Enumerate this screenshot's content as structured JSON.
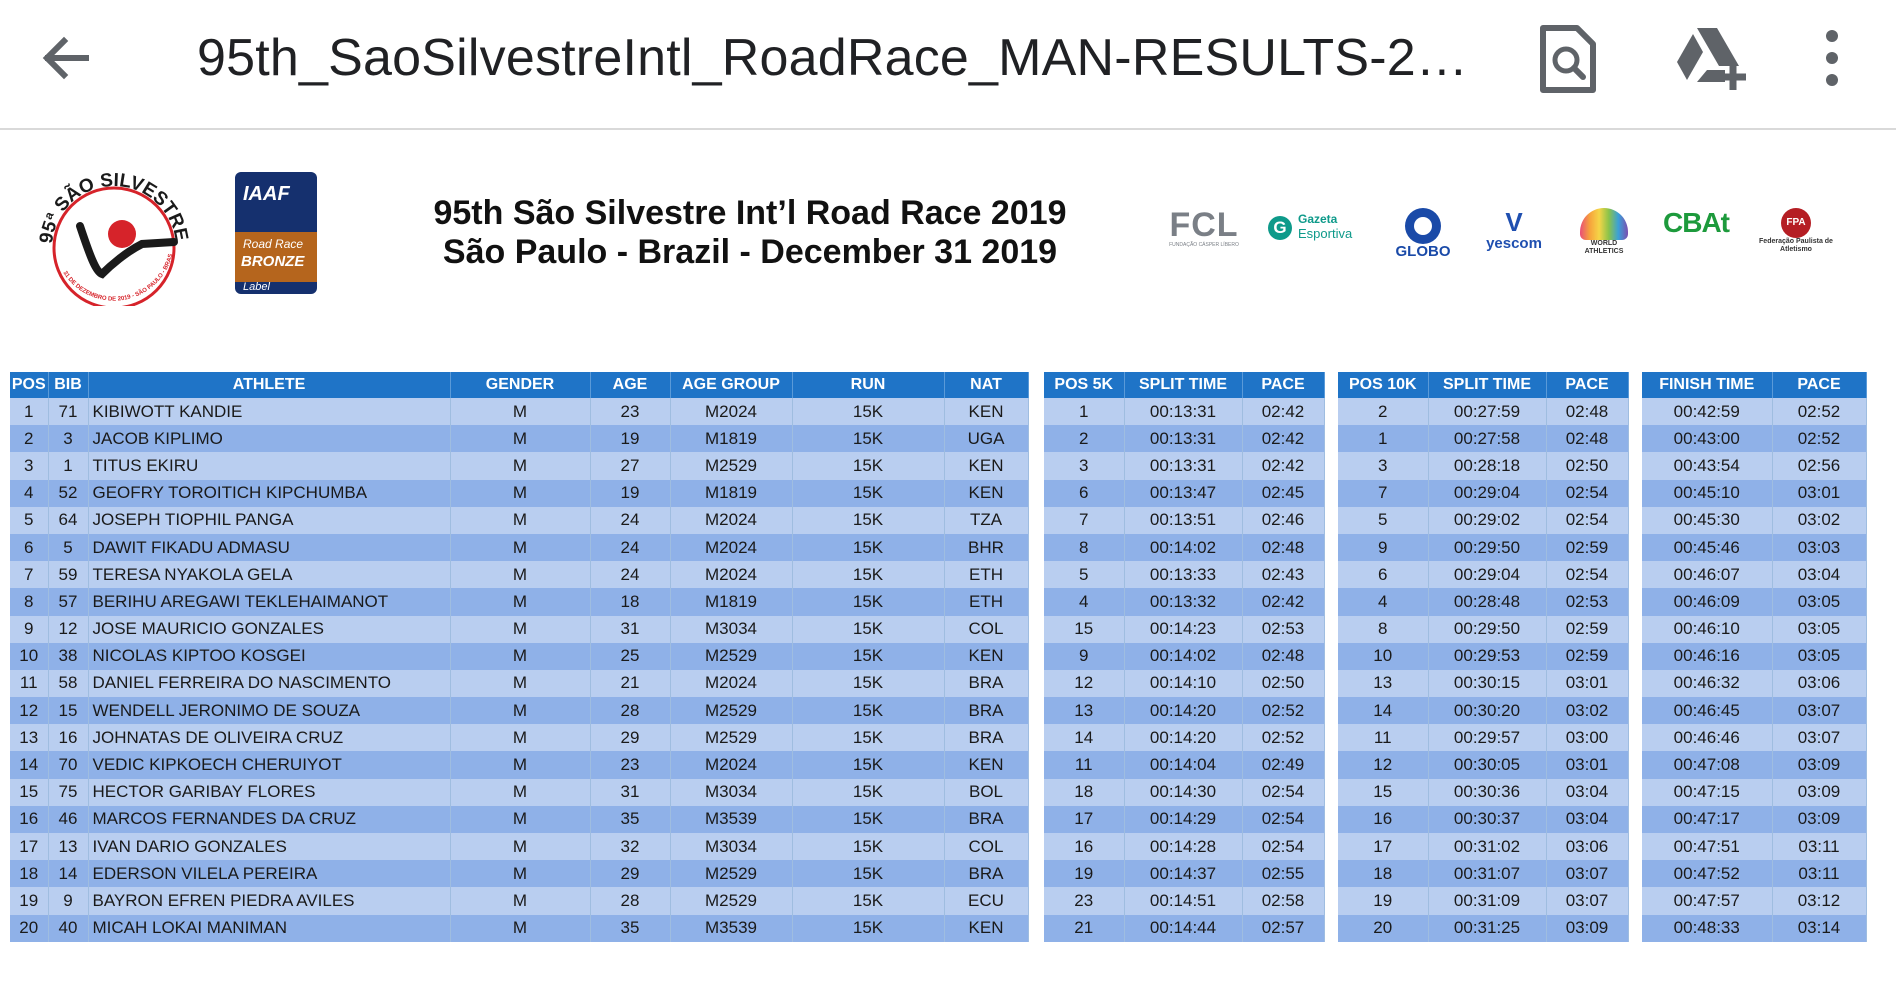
{
  "app_bar": {
    "title": "95th_SaoSilvestreIntl_RoadRace_MAN-RESULTS-20...",
    "back_icon": "arrow-back-icon",
    "search_icon": "find-in-document-icon",
    "drive_icon": "add-to-drive-icon",
    "more_icon": "more-vertical-icon"
  },
  "document": {
    "title_line1": "95th São Silvestre Int’l Road Race 2019",
    "title_line2": "São Paulo - Brazil - December 31 2019",
    "logo_ss": {
      "ring_text": "95ª SÃO SILVESTRE",
      "bottom_text": "31 DE DEZEMBRO DE 2019 - SÃO PAULO - BRASIL"
    },
    "logo_iaaf": {
      "line1": "IAAF",
      "line2": "Road Race",
      "line3": "BRONZE",
      "line4": "Label"
    },
    "sponsors": {
      "fcl": "FCL",
      "fcl_sub": "FUNDAÇÃO CÁSPER LÍBERO",
      "gazeta_line1": "Gazeta",
      "gazeta_line2": "Esportiva",
      "globo": "GLOBO",
      "yescom": "yescom",
      "world_athletics": "WORLD ATHLETICS",
      "cbat": "CBAt",
      "fpa": "Federação Paulista de Atletismo"
    }
  },
  "headers": {
    "main": [
      "POS",
      "BIB",
      "ATHLETE",
      "GENDER",
      "AGE",
      "AGE GROUP",
      "RUN",
      "NAT"
    ],
    "split5k": [
      "POS 5K",
      "SPLIT TIME",
      "PACE"
    ],
    "split10k": [
      "POS 10K",
      "SPLIT TIME",
      "PACE"
    ],
    "finish": [
      "FINISH TIME",
      "PACE"
    ]
  },
  "results": [
    {
      "pos": "1",
      "bib": "71",
      "athlete": "KIBIWOTT KANDIE",
      "gender": "M",
      "age": "23",
      "age_group": "M2024",
      "run": "15K",
      "nat": "KEN",
      "pos5k": "1",
      "split5k": "00:13:31",
      "pace5k": "02:42",
      "pos10k": "2",
      "split10k": "00:27:59",
      "pace10k": "02:48",
      "finish": "00:42:59",
      "pace": "02:52"
    },
    {
      "pos": "2",
      "bib": "3",
      "athlete": "JACOB KIPLIMO",
      "gender": "M",
      "age": "19",
      "age_group": "M1819",
      "run": "15K",
      "nat": "UGA",
      "pos5k": "2",
      "split5k": "00:13:31",
      "pace5k": "02:42",
      "pos10k": "1",
      "split10k": "00:27:58",
      "pace10k": "02:48",
      "finish": "00:43:00",
      "pace": "02:52"
    },
    {
      "pos": "3",
      "bib": "1",
      "athlete": "TITUS EKIRU",
      "gender": "M",
      "age": "27",
      "age_group": "M2529",
      "run": "15K",
      "nat": "KEN",
      "pos5k": "3",
      "split5k": "00:13:31",
      "pace5k": "02:42",
      "pos10k": "3",
      "split10k": "00:28:18",
      "pace10k": "02:50",
      "finish": "00:43:54",
      "pace": "02:56"
    },
    {
      "pos": "4",
      "bib": "52",
      "athlete": "GEOFRY TOROITICH KIPCHUMBA",
      "gender": "M",
      "age": "19",
      "age_group": "M1819",
      "run": "15K",
      "nat": "KEN",
      "pos5k": "6",
      "split5k": "00:13:47",
      "pace5k": "02:45",
      "pos10k": "7",
      "split10k": "00:29:04",
      "pace10k": "02:54",
      "finish": "00:45:10",
      "pace": "03:01"
    },
    {
      "pos": "5",
      "bib": "64",
      "athlete": "JOSEPH TIOPHIL PANGA",
      "gender": "M",
      "age": "24",
      "age_group": "M2024",
      "run": "15K",
      "nat": "TZA",
      "pos5k": "7",
      "split5k": "00:13:51",
      "pace5k": "02:46",
      "pos10k": "5",
      "split10k": "00:29:02",
      "pace10k": "02:54",
      "finish": "00:45:30",
      "pace": "03:02"
    },
    {
      "pos": "6",
      "bib": "5",
      "athlete": "DAWIT FIKADU ADMASU",
      "gender": "M",
      "age": "24",
      "age_group": "M2024",
      "run": "15K",
      "nat": "BHR",
      "pos5k": "8",
      "split5k": "00:14:02",
      "pace5k": "02:48",
      "pos10k": "9",
      "split10k": "00:29:50",
      "pace10k": "02:59",
      "finish": "00:45:46",
      "pace": "03:03"
    },
    {
      "pos": "7",
      "bib": "59",
      "athlete": "TERESA NYAKOLA GELA",
      "gender": "M",
      "age": "24",
      "age_group": "M2024",
      "run": "15K",
      "nat": "ETH",
      "pos5k": "5",
      "split5k": "00:13:33",
      "pace5k": "02:43",
      "pos10k": "6",
      "split10k": "00:29:04",
      "pace10k": "02:54",
      "finish": "00:46:07",
      "pace": "03:04"
    },
    {
      "pos": "8",
      "bib": "57",
      "athlete": "BERIHU AREGAWI TEKLEHAIMANOT",
      "gender": "M",
      "age": "18",
      "age_group": "M1819",
      "run": "15K",
      "nat": "ETH",
      "pos5k": "4",
      "split5k": "00:13:32",
      "pace5k": "02:42",
      "pos10k": "4",
      "split10k": "00:28:48",
      "pace10k": "02:53",
      "finish": "00:46:09",
      "pace": "03:05"
    },
    {
      "pos": "9",
      "bib": "12",
      "athlete": "JOSE MAURICIO GONZALES",
      "gender": "M",
      "age": "31",
      "age_group": "M3034",
      "run": "15K",
      "nat": "COL",
      "pos5k": "15",
      "split5k": "00:14:23",
      "pace5k": "02:53",
      "pos10k": "8",
      "split10k": "00:29:50",
      "pace10k": "02:59",
      "finish": "00:46:10",
      "pace": "03:05"
    },
    {
      "pos": "10",
      "bib": "38",
      "athlete": "NICOLAS KIPTOO KOSGEI",
      "gender": "M",
      "age": "25",
      "age_group": "M2529",
      "run": "15K",
      "nat": "KEN",
      "pos5k": "9",
      "split5k": "00:14:02",
      "pace5k": "02:48",
      "pos10k": "10",
      "split10k": "00:29:53",
      "pace10k": "02:59",
      "finish": "00:46:16",
      "pace": "03:05"
    },
    {
      "pos": "11",
      "bib": "58",
      "athlete": "DANIEL FERREIRA DO NASCIMENTO",
      "gender": "M",
      "age": "21",
      "age_group": "M2024",
      "run": "15K",
      "nat": "BRA",
      "pos5k": "12",
      "split5k": "00:14:10",
      "pace5k": "02:50",
      "pos10k": "13",
      "split10k": "00:30:15",
      "pace10k": "03:01",
      "finish": "00:46:32",
      "pace": "03:06"
    },
    {
      "pos": "12",
      "bib": "15",
      "athlete": "WENDELL JERONIMO DE SOUZA",
      "gender": "M",
      "age": "28",
      "age_group": "M2529",
      "run": "15K",
      "nat": "BRA",
      "pos5k": "13",
      "split5k": "00:14:20",
      "pace5k": "02:52",
      "pos10k": "14",
      "split10k": "00:30:20",
      "pace10k": "03:02",
      "finish": "00:46:45",
      "pace": "03:07"
    },
    {
      "pos": "13",
      "bib": "16",
      "athlete": "JOHNATAS DE OLIVEIRA CRUZ",
      "gender": "M",
      "age": "29",
      "age_group": "M2529",
      "run": "15K",
      "nat": "BRA",
      "pos5k": "14",
      "split5k": "00:14:20",
      "pace5k": "02:52",
      "pos10k": "11",
      "split10k": "00:29:57",
      "pace10k": "03:00",
      "finish": "00:46:46",
      "pace": "03:07"
    },
    {
      "pos": "14",
      "bib": "70",
      "athlete": "VEDIC KIPKOECH CHERUIYOT",
      "gender": "M",
      "age": "23",
      "age_group": "M2024",
      "run": "15K",
      "nat": "KEN",
      "pos5k": "11",
      "split5k": "00:14:04",
      "pace5k": "02:49",
      "pos10k": "12",
      "split10k": "00:30:05",
      "pace10k": "03:01",
      "finish": "00:47:08",
      "pace": "03:09"
    },
    {
      "pos": "15",
      "bib": "75",
      "athlete": "HECTOR GARIBAY FLORES",
      "gender": "M",
      "age": "31",
      "age_group": "M3034",
      "run": "15K",
      "nat": "BOL",
      "pos5k": "18",
      "split5k": "00:14:30",
      "pace5k": "02:54",
      "pos10k": "15",
      "split10k": "00:30:36",
      "pace10k": "03:04",
      "finish": "00:47:15",
      "pace": "03:09"
    },
    {
      "pos": "16",
      "bib": "46",
      "athlete": "MARCOS  FERNANDES DA CRUZ",
      "gender": "M",
      "age": "35",
      "age_group": "M3539",
      "run": "15K",
      "nat": "BRA",
      "pos5k": "17",
      "split5k": "00:14:29",
      "pace5k": "02:54",
      "pos10k": "16",
      "split10k": "00:30:37",
      "pace10k": "03:04",
      "finish": "00:47:17",
      "pace": "03:09"
    },
    {
      "pos": "17",
      "bib": "13",
      "athlete": "IVAN DARIO GONZALES",
      "gender": "M",
      "age": "32",
      "age_group": "M3034",
      "run": "15K",
      "nat": "COL",
      "pos5k": "16",
      "split5k": "00:14:28",
      "pace5k": "02:54",
      "pos10k": "17",
      "split10k": "00:31:02",
      "pace10k": "03:06",
      "finish": "00:47:51",
      "pace": "03:11"
    },
    {
      "pos": "18",
      "bib": "14",
      "athlete": "EDERSON VILELA PEREIRA",
      "gender": "M",
      "age": "29",
      "age_group": "M2529",
      "run": "15K",
      "nat": "BRA",
      "pos5k": "19",
      "split5k": "00:14:37",
      "pace5k": "02:55",
      "pos10k": "18",
      "split10k": "00:31:07",
      "pace10k": "03:07",
      "finish": "00:47:52",
      "pace": "03:11"
    },
    {
      "pos": "19",
      "bib": "9",
      "athlete": "BAYRON EFREN PIEDRA AVILES",
      "gender": "M",
      "age": "28",
      "age_group": "M2529",
      "run": "15K",
      "nat": "ECU",
      "pos5k": "23",
      "split5k": "00:14:51",
      "pace5k": "02:58",
      "pos10k": "19",
      "split10k": "00:31:09",
      "pace10k": "03:07",
      "finish": "00:47:57",
      "pace": "03:12"
    },
    {
      "pos": "20",
      "bib": "40",
      "athlete": "MICAH LOKAI MANIMAN",
      "gender": "M",
      "age": "35",
      "age_group": "M3539",
      "run": "15K",
      "nat": "KEN",
      "pos5k": "21",
      "split5k": "00:14:44",
      "pace5k": "02:57",
      "pos10k": "20",
      "split10k": "00:31:25",
      "pace10k": "03:09",
      "finish": "00:48:33",
      "pace": "03:14"
    }
  ]
}
